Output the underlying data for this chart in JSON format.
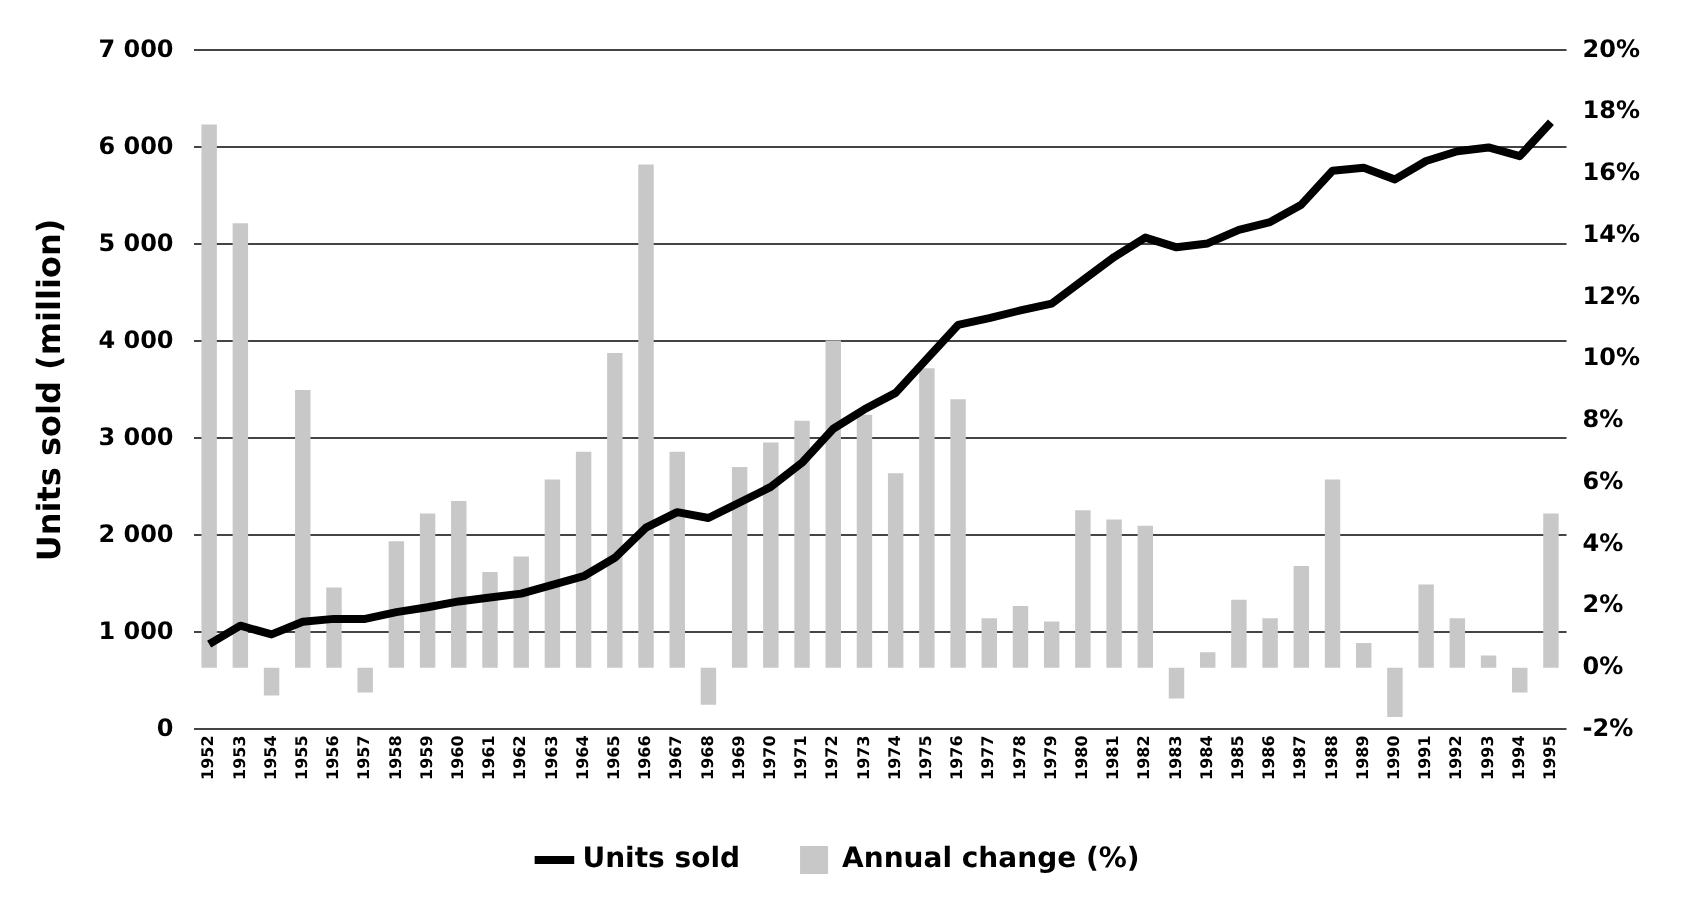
{
  "chart_data": {
    "type": "bar",
    "categories": [
      "1952",
      "1953",
      "1954",
      "1955",
      "1956",
      "1957",
      "1958",
      "1959",
      "1960",
      "1961",
      "1962",
      "1963",
      "1964",
      "1965",
      "1966",
      "1967",
      "1968",
      "1969",
      "1970",
      "1971",
      "1972",
      "1973",
      "1974",
      "1975",
      "1976",
      "1977",
      "1978",
      "1979",
      "1980",
      "1981",
      "1982",
      "1983",
      "1984",
      "1985",
      "1986",
      "1987",
      "1988",
      "1989",
      "1990",
      "1991",
      "1992",
      "1993",
      "1994",
      "1995"
    ],
    "series": [
      {
        "name": "Units sold",
        "type": "line",
        "color": "#000000",
        "values": [
          880,
          1070,
          980,
          1110,
          1140,
          1140,
          1210,
          1260,
          1320,
          1360,
          1400,
          1490,
          1580,
          1770,
          2080,
          2240,
          2180,
          2340,
          2500,
          2750,
          3100,
          3300,
          3470,
          3820,
          4170,
          4240,
          4320,
          4390,
          4630,
          4870,
          5070,
          4970,
          5010,
          5150,
          5230,
          5410,
          5760,
          5790,
          5670,
          5860,
          5960,
          6000,
          5910,
          6260
        ]
      },
      {
        "name": "Annual change (%)",
        "axis": "y2",
        "color": "#c8c8c8",
        "values": [
          17.6,
          14.4,
          -0.9,
          9.0,
          2.6,
          -0.8,
          4.1,
          5.0,
          5.4,
          3.1,
          3.6,
          6.1,
          7.0,
          10.2,
          16.3,
          7.0,
          -1.2,
          6.5,
          7.3,
          8.0,
          10.6,
          8.2,
          6.3,
          9.7,
          8.7,
          1.6,
          2.0,
          1.5,
          5.1,
          4.8,
          4.6,
          -1.0,
          0.5,
          2.2,
          1.6,
          3.3,
          6.1,
          0.8,
          -1.6,
          2.7,
          1.6,
          0.4,
          -0.8,
          5.0
        ]
      }
    ],
    "ylabel": "Units sold (million)",
    "ylim": [
      0,
      7000
    ],
    "yticks": [
      0,
      {
        "value": 1000,
        "label": "1 000"
      },
      {
        "value": 2000,
        "label": "2 000"
      },
      {
        "value": 3000,
        "label": "3 000"
      },
      {
        "value": 4000,
        "label": "4 000"
      },
      {
        "value": 5000,
        "label": "5 000"
      },
      {
        "value": 6000,
        "label": "6 000"
      },
      {
        "value": 7000,
        "label": "7 000"
      }
    ],
    "y2lim": [
      -2,
      20
    ],
    "y2ticks": [
      {
        "value": -2,
        "label": "-2%"
      },
      {
        "value": 0,
        "label": "0%"
      },
      {
        "value": 2,
        "label": "2%"
      },
      {
        "value": 4,
        "label": "4%"
      },
      {
        "value": 6,
        "label": "6%"
      },
      {
        "value": 8,
        "label": "8%"
      },
      {
        "value": 10,
        "label": "10%"
      },
      {
        "value": 12,
        "label": "12%"
      },
      {
        "value": 14,
        "label": "14%"
      },
      {
        "value": 16,
        "label": "16%"
      },
      {
        "value": 18,
        "label": "18%"
      },
      {
        "value": 20,
        "label": "20%"
      }
    ],
    "grid": "y",
    "legend": "bottom"
  }
}
